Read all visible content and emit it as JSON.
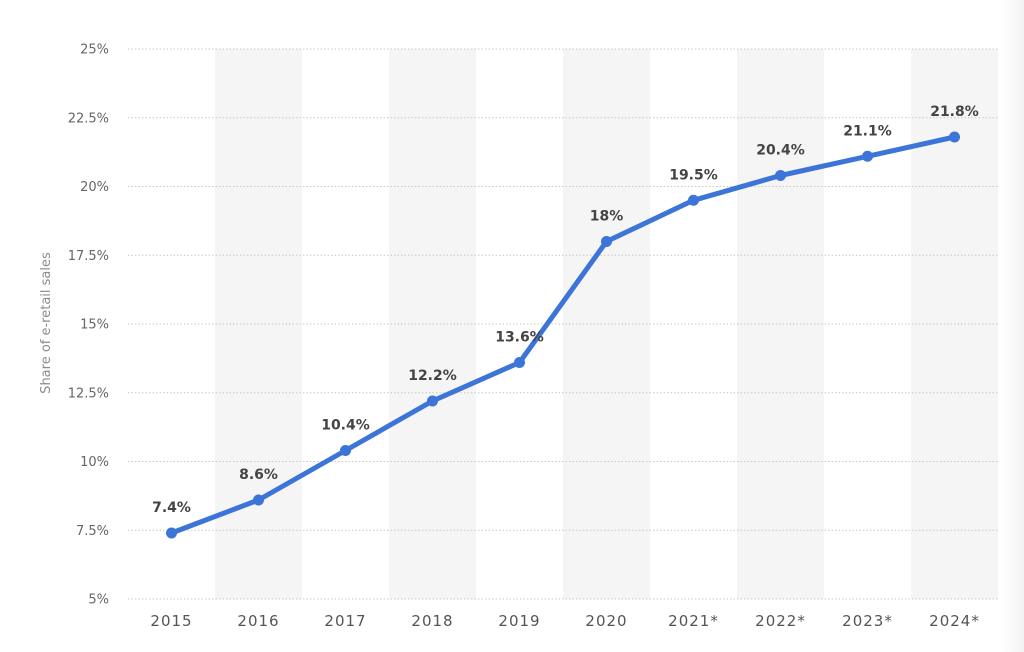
{
  "chart_data": {
    "type": "line",
    "title": "",
    "xlabel": "",
    "ylabel": "Share of e-retail sales",
    "categories": [
      "2015",
      "2016",
      "2017",
      "2018",
      "2019",
      "2020",
      "2021*",
      "2022*",
      "2023*",
      "2024*"
    ],
    "series": [
      {
        "values": [
          7.4,
          8.6,
          10.4,
          12.2,
          13.6,
          18,
          19.5,
          20.4,
          21.1,
          21.8
        ],
        "labels": [
          "7.4%",
          "8.6%",
          "10.4%",
          "12.2%",
          "13.6%",
          "18%",
          "19.5%",
          "20.4%",
          "21.1%",
          "21.8%"
        ],
        "color": "#3c74d8"
      }
    ],
    "ylim": [
      5,
      25
    ],
    "yticks": [
      5,
      7.5,
      10,
      12.5,
      15,
      17.5,
      20,
      22.5,
      25
    ],
    "ytick_labels": [
      "5%",
      "7.5%",
      "10%",
      "12.5%",
      "15%",
      "17.5%",
      "20%",
      "22.5%",
      "25%"
    ],
    "grid": true,
    "legend": "none",
    "band_color": "#f5f5f5"
  }
}
